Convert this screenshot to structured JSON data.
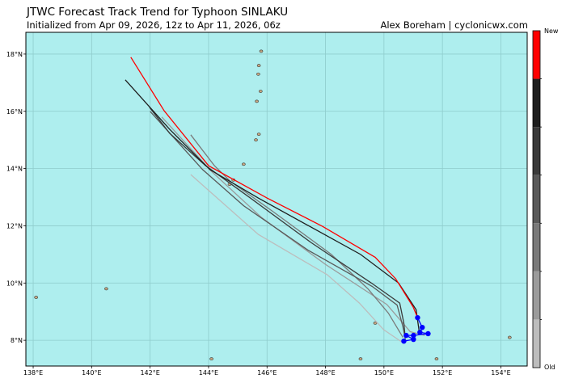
{
  "header": {
    "title": "JTWC Forecast Track Trend for Typhoon SINLAKU",
    "subtitle": "Initialized from Apr 09, 2026, 12z to Apr 11, 2026, 06z",
    "credit": "Alex Boreham | cyclonicwx.com"
  },
  "colors": {
    "ocean": "#aeeeee",
    "land": "#c8a882",
    "grid": "#8fcccc",
    "observed": "#0000ff"
  },
  "chart_data": {
    "type": "map-track",
    "lon_range": [
      137.75,
      154.9
    ],
    "lat_range": [
      7.1,
      18.76
    ],
    "lon_ticks": [
      138,
      140,
      142,
      144,
      146,
      148,
      150,
      152,
      154
    ],
    "lon_labels": [
      "138°E",
      "140°E",
      "142°E",
      "144°E",
      "146°E",
      "148°E",
      "150°E",
      "152°E",
      "154°E"
    ],
    "lat_ticks": [
      8,
      10,
      12,
      14,
      16,
      18
    ],
    "lat_labels": [
      "8°N",
      "10°N",
      "12°N",
      "14°N",
      "16°N",
      "18°N"
    ],
    "grid": true,
    "colorbar": {
      "top_label": "New",
      "bottom_label": "Old",
      "colors": [
        "#ff0000",
        "#1e1e1e",
        "#3a3a3a",
        "#595959",
        "#7a7a7a",
        "#9b9b9b",
        "#bdbdbd"
      ]
    },
    "tracks": [
      {
        "color": "#bdbdbd",
        "points": [
          [
            143.39,
            13.79
          ],
          [
            145.7,
            11.7
          ],
          [
            148.06,
            10.29
          ],
          [
            149.16,
            9.3
          ],
          [
            149.99,
            8.37
          ],
          [
            150.68,
            7.89
          ]
        ]
      },
      {
        "color": "#9b9b9b",
        "points": [
          [
            142.4,
            15.8
          ],
          [
            144.1,
            13.9
          ],
          [
            145.8,
            12.3
          ],
          [
            148.0,
            10.65
          ],
          [
            150.1,
            9.25
          ],
          [
            150.9,
            8.3
          ],
          [
            151.4,
            8.17
          ]
        ]
      },
      {
        "color": "#7a7a7a",
        "points": [
          [
            143.39,
            15.18
          ],
          [
            144.2,
            14.1
          ],
          [
            144.75,
            13.55
          ],
          [
            146.2,
            12.5
          ],
          [
            148.2,
            11.0
          ],
          [
            149.45,
            9.8
          ],
          [
            150.15,
            8.95
          ],
          [
            150.65,
            8.1
          ]
        ]
      },
      {
        "color": "#595959",
        "points": [
          [
            142.0,
            16.0
          ],
          [
            143.8,
            13.96
          ],
          [
            145.2,
            12.7
          ],
          [
            147.4,
            11.15
          ],
          [
            149.6,
            9.88
          ],
          [
            150.45,
            9.23
          ],
          [
            150.65,
            8.47
          ],
          [
            150.73,
            8.05
          ]
        ]
      },
      {
        "color": "#3a3a3a",
        "points": [
          [
            141.98,
            16.14
          ],
          [
            142.67,
            15.23
          ],
          [
            143.9,
            14.1
          ],
          [
            145.43,
            12.97
          ],
          [
            147.5,
            11.42
          ],
          [
            149.57,
            10.0
          ],
          [
            150.54,
            9.3
          ],
          [
            150.68,
            8.6
          ],
          [
            150.73,
            8.08
          ]
        ]
      },
      {
        "color": "#1e1e1e",
        "points": [
          [
            141.15,
            17.1
          ],
          [
            142.67,
            15.37
          ],
          [
            144.05,
            13.96
          ],
          [
            145.7,
            12.97
          ],
          [
            149.2,
            11.0
          ],
          [
            150.5,
            10.0
          ],
          [
            151.1,
            9.07
          ],
          [
            151.2,
            8.35
          ]
        ]
      },
      {
        "color": "#ff0000",
        "points": [
          [
            141.34,
            17.89
          ],
          [
            142.48,
            16.02
          ],
          [
            144.0,
            14.1
          ],
          [
            146.0,
            12.97
          ],
          [
            147.9,
            11.98
          ],
          [
            149.7,
            10.9
          ],
          [
            150.4,
            10.15
          ],
          [
            151.0,
            9.16
          ],
          [
            151.15,
            8.79
          ]
        ]
      }
    ],
    "observed": [
      [
        151.15,
        8.79
      ],
      [
        151.31,
        8.45
      ],
      [
        151.23,
        8.28
      ],
      [
        151.51,
        8.23
      ],
      [
        151.01,
        8.17
      ],
      [
        150.76,
        8.17
      ],
      [
        151.01,
        8.03
      ],
      [
        150.68,
        7.97
      ]
    ],
    "islands": [
      [
        144.72,
        13.45
      ],
      [
        144.85,
        13.6
      ],
      [
        145.2,
        14.15
      ],
      [
        145.62,
        15.0
      ],
      [
        145.72,
        15.2
      ],
      [
        145.65,
        16.35
      ],
      [
        145.78,
        16.7
      ],
      [
        145.7,
        17.3
      ],
      [
        145.72,
        17.6
      ],
      [
        145.8,
        18.1
      ],
      [
        138.1,
        9.5
      ],
      [
        140.5,
        9.8
      ],
      [
        149.7,
        8.6
      ],
      [
        149.2,
        7.35
      ],
      [
        154.3,
        8.1
      ],
      [
        144.1,
        7.35
      ],
      [
        151.8,
        7.35
      ]
    ]
  }
}
